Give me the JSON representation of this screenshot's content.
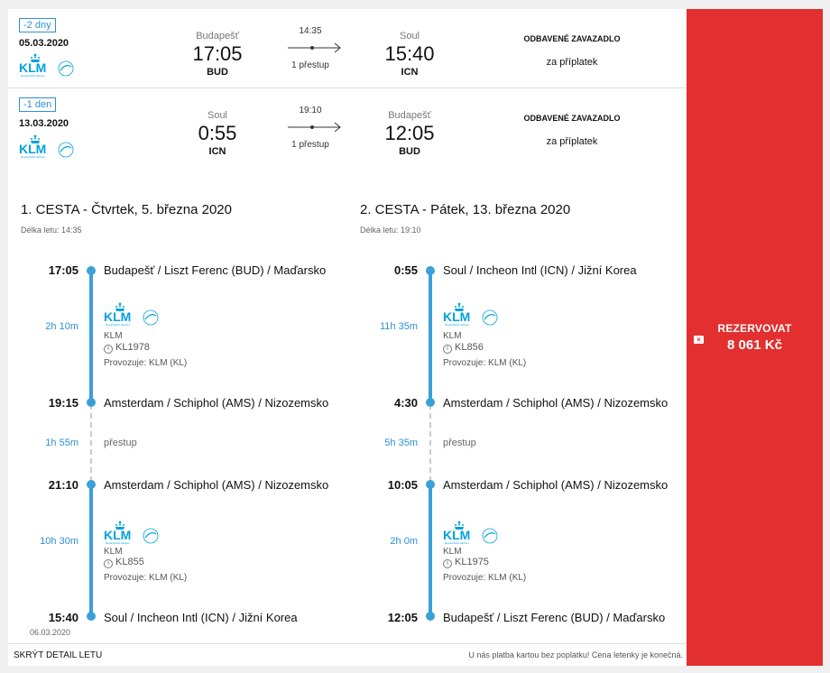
{
  "summary": [
    {
      "day_tag": "-2 dny",
      "date": "05.03.2020",
      "from_city": "Budapešť",
      "dep_time": "17:05",
      "from_code": "BUD",
      "duration": "14:35",
      "stops": "1 přestup",
      "to_city": "Soul",
      "arr_time": "15:40",
      "to_code": "ICN",
      "baggage_title": "ODBAVENÉ ZAVAZADLO",
      "baggage_sub": "za příplatek"
    },
    {
      "day_tag": "-1 den",
      "date": "13.03.2020",
      "from_city": "Soul",
      "dep_time": "0:55",
      "from_code": "ICN",
      "duration": "19:10",
      "stops": "1 přestup",
      "to_city": "Budapešť",
      "arr_time": "12:05",
      "to_code": "BUD",
      "baggage_title": "ODBAVENÉ ZAVAZADLO",
      "baggage_sub": "za příplatek"
    }
  ],
  "legs": [
    {
      "title": "1. CESTA - Čtvrtek, 5. března 2020",
      "duration": "Délka letu: 14:35",
      "stop1_time": "17:05",
      "stop1_place": "Budapešť / Liszt Ferenc (BUD) / Maďarsko",
      "seg1_duration": "2h 10m",
      "seg1_airline": "KLM",
      "seg1_flight": "KL1978",
      "seg1_operated": "Provozuje: KLM (KL)",
      "stop2_time": "19:15",
      "stop2_place": "Amsterdam / Schiphol (AMS) / Nizozemsko",
      "transfer_duration": "1h 55m",
      "transfer_label": "přestup",
      "stop3_time": "21:10",
      "stop3_place": "Amsterdam / Schiphol (AMS) / Nizozemsko",
      "seg2_duration": "10h 30m",
      "seg2_airline": "KLM",
      "seg2_flight": "KL855",
      "seg2_operated": "Provozuje: KLM (KL)",
      "stop4_time": "15:40",
      "stop4_place": "Soul / Incheon Intl (ICN) / Jižní Korea",
      "arrival_date": "06.03.2020"
    },
    {
      "title": "2. CESTA - Pátek, 13. března 2020",
      "duration": "Délka letu: 19:10",
      "stop1_time": "0:55",
      "stop1_place": "Soul / Incheon Intl (ICN) / Jižní Korea",
      "seg1_duration": "11h 35m",
      "seg1_airline": "KLM",
      "seg1_flight": "KL856",
      "seg1_operated": "Provozuje: KLM (KL)",
      "stop2_time": "4:30",
      "stop2_place": "Amsterdam / Schiphol (AMS) / Nizozemsko",
      "transfer_duration": "5h 35m",
      "transfer_label": "přestup",
      "stop3_time": "10:05",
      "stop3_place": "Amsterdam / Schiphol (AMS) / Nizozemsko",
      "seg2_duration": "2h 0m",
      "seg2_airline": "KLM",
      "seg2_flight": "KL1975",
      "seg2_operated": "Provozuje: KLM (KL)",
      "stop4_time": "12:05",
      "stop4_place": "Budapešť / Liszt Ferenc (BUD) / Maďarsko",
      "arrival_date": ""
    }
  ],
  "book": {
    "label": "REZERVOVAT",
    "price": "8 061 Kč"
  },
  "footer": {
    "hide_detail": "SKRÝT DETAIL LETU",
    "payment_note": "U nás platba kartou bez poplatku! Cena letenky je konečná."
  },
  "logo": {
    "wordmark": "KLM",
    "tagline": "Royal Dutch Airlines",
    "color": "#00a1de"
  },
  "colors": {
    "accent": "#3aa0d8",
    "book": "#e32f2f"
  }
}
